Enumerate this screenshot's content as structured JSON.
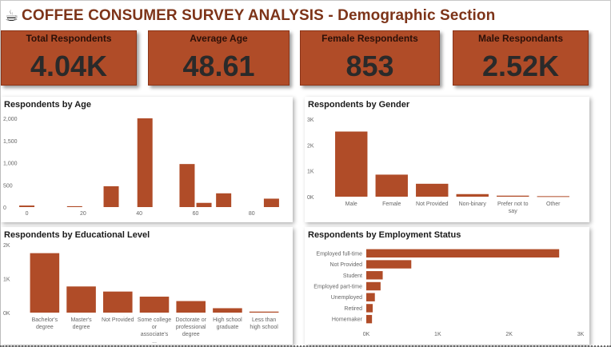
{
  "header": {
    "icon": "coffee-cup-icon",
    "glyph": "☕",
    "title": "COFFEE CONSUMER SURVEY ANALYSIS - Demographic Section"
  },
  "kpis": [
    {
      "label": "Total Respondents",
      "value": "4.04K"
    },
    {
      "label": "Average Age",
      "value": "48.61"
    },
    {
      "label": "Female Respondents",
      "value": "853"
    },
    {
      "label": "Male Respondants",
      "value": "2.52K"
    }
  ],
  "colors": {
    "accent": "#b04c28",
    "title": "#7d3419",
    "kpi_text": "#2a2a2a"
  },
  "chart_data": [
    {
      "id": "age",
      "type": "bar",
      "title": "Respondents by Age",
      "x_ticks": [
        "0",
        "20",
        "40",
        "60",
        "80"
      ],
      "y_ticks": [
        "2,000",
        "1,500",
        "1,000",
        "500",
        "0"
      ],
      "xlim": [
        -3,
        92
      ],
      "ylim": [
        0,
        2000
      ],
      "x": [
        0,
        17,
        30,
        42,
        57,
        63,
        70,
        87
      ],
      "values": [
        35,
        20,
        470,
        2000,
        970,
        95,
        310,
        190
      ]
    },
    {
      "id": "gender",
      "type": "bar",
      "title": "Respondents by Gender",
      "categories": [
        "Male",
        "Female",
        "Not Provided",
        "Non-binary",
        "Prefer not to say",
        "Other"
      ],
      "values": [
        2520,
        853,
        500,
        100,
        40,
        20
      ],
      "y_ticks": [
        "3K",
        "2K",
        "1K",
        "0K"
      ],
      "ylim": [
        0,
        3000
      ]
    },
    {
      "id": "education",
      "type": "bar",
      "title": "Respondents by Educational Level",
      "categories": [
        "Bachelor's degree",
        "Master's degree",
        "Not Provided",
        "Some college or associate's ...",
        "Doctorate or professional degree",
        "High school graduate",
        "Less than high school"
      ],
      "values": [
        1750,
        770,
        620,
        470,
        340,
        130,
        30
      ],
      "y_ticks": [
        "2K",
        "1K",
        "0K"
      ],
      "ylim": [
        0,
        2000
      ]
    },
    {
      "id": "employment",
      "type": "bar",
      "orientation": "horizontal",
      "title": "Respondents by Employment Status",
      "categories": [
        "Employed full-time",
        "Not Provided",
        "Student",
        "Employed part-time",
        "Unemployed",
        "Retired",
        "Homemaker"
      ],
      "values": [
        2700,
        630,
        230,
        200,
        120,
        90,
        80
      ],
      "x_ticks": [
        "0K",
        "1K",
        "2K",
        "3K"
      ],
      "xlim": [
        0,
        3000
      ]
    }
  ]
}
